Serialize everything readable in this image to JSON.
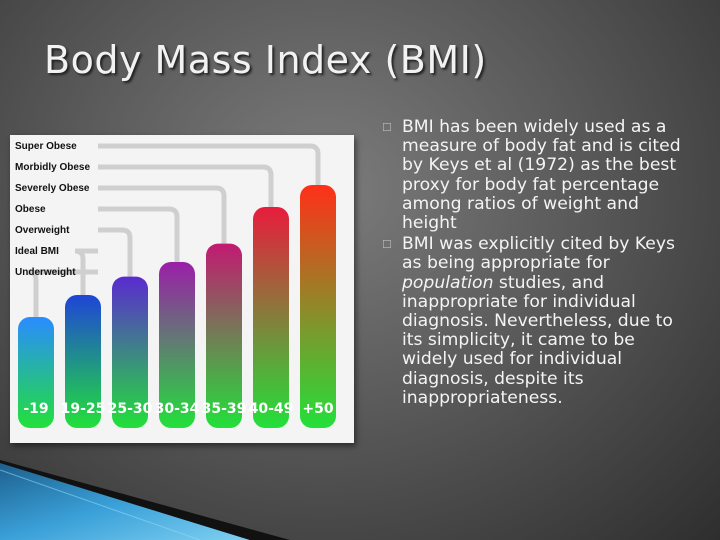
{
  "slide": {
    "title": "Body Mass Index (BMI)"
  },
  "chart_data": {
    "type": "bar",
    "categories": [
      "-19",
      "19-25",
      "25-30",
      "30-34",
      "35-39",
      "40-49",
      "+50"
    ],
    "labels": [
      "Super Obese",
      "Morbidly Obese",
      "Severely Obese",
      "Obese",
      "Overweight",
      "Ideal BMI",
      "Underweight"
    ],
    "values": [
      19,
      25,
      30,
      34,
      39,
      49,
      55
    ],
    "colors": [
      "#2a8cff",
      "#1f45d6",
      "#5a2bd0",
      "#9a1fa8",
      "#c21a72",
      "#e81c3c",
      "#ff3018"
    ],
    "bottom_color": "#22e03a",
    "title": "",
    "xlabel": "",
    "ylabel": ""
  },
  "bullets": [
    {
      "text": "BMI has been widely used as a measure of body fat and is cited by Keys et al (1972) as the best proxy for body fat percentage among ratios of weight and height"
    },
    {
      "text_before": "BMI was explicitly cited by Keys as being appropriate for ",
      "text_em": "population",
      "text_after": " studies, and inappropriate for individual diagnosis. Nevertheless, due to its simplicity, it came to be widely used for individual diagnosis, despite its inappropriateness."
    }
  ],
  "icons": {
    "bullet": "checkbox-icon"
  }
}
